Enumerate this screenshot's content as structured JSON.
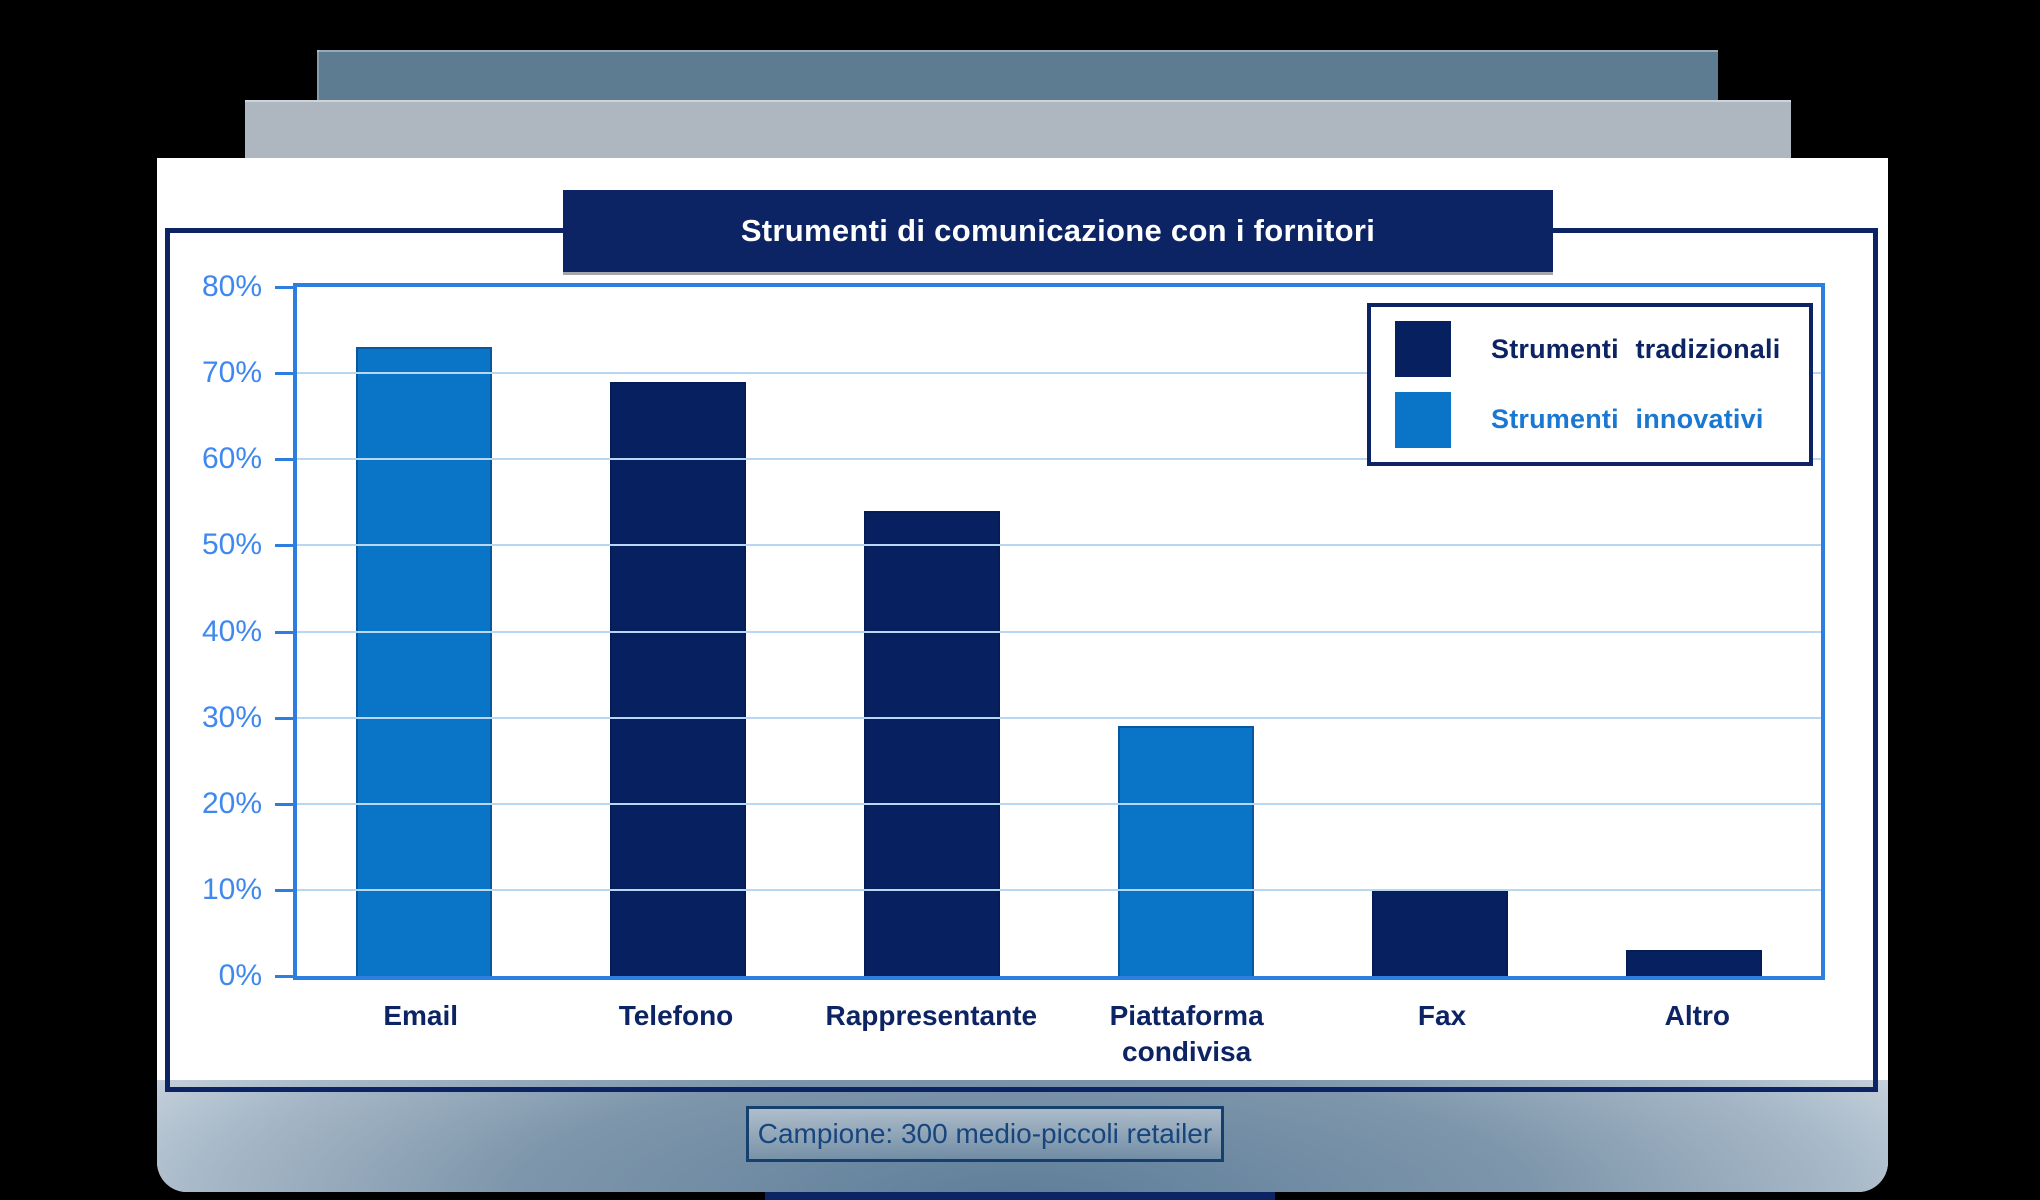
{
  "slide": {
    "title": "Strumenti di comunicazione con i fornitori",
    "caption": "Campione: 300 medio-piccoli retailer"
  },
  "legend": {
    "items": [
      {
        "label": "Strumenti tradizionali",
        "series": "tradizionali",
        "label_color": "#0d2464"
      },
      {
        "label": "Strumenti innovativi",
        "series": "innovativi",
        "label_color": "#1a78d2"
      }
    ]
  },
  "colors": {
    "tradizionali": "#07205f",
    "innovativi": "#0a74c6",
    "banner_navy": "#0d2464",
    "axis_blue": "#2e7ee0",
    "gridline_blue": "#b8d7f5",
    "y_label_blue": "#3e88ef",
    "caption_text": "#17457d"
  },
  "chart_data": {
    "type": "bar",
    "title": "Strumenti di comunicazione con i fornitori",
    "categories": [
      "Email",
      "Telefono",
      "Rappresentante",
      "Piattaforma condivisa",
      "Fax",
      "Altro"
    ],
    "values": [
      73,
      69,
      54,
      29,
      10,
      3
    ],
    "series_by_category": [
      "innovativi",
      "tradizionali",
      "tradizionali",
      "innovativi",
      "tradizionali",
      "tradizionali"
    ],
    "unit": "%",
    "ylim": [
      0,
      80
    ],
    "yticks": [
      "0%",
      "10%",
      "20%",
      "30%",
      "40%",
      "50%",
      "60%",
      "70%",
      "80%"
    ],
    "grid": true,
    "legend_position": "top-right",
    "legend": [
      "Strumenti tradizionali",
      "Strumenti innovativi"
    ],
    "caption": "Campione: 300 medio-piccoli retailer",
    "colors": {
      "tradizionali": "#07205f",
      "innovativi": "#0a74c6"
    }
  }
}
